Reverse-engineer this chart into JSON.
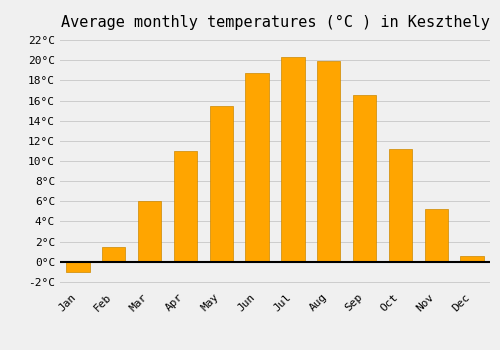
{
  "title": "Average monthly temperatures (°C ) in Keszthely",
  "months": [
    "Jan",
    "Feb",
    "Mar",
    "Apr",
    "May",
    "Jun",
    "Jul",
    "Aug",
    "Sep",
    "Oct",
    "Nov",
    "Dec"
  ],
  "values": [
    -1.0,
    1.5,
    6.0,
    11.0,
    15.5,
    18.7,
    20.3,
    19.9,
    16.5,
    11.2,
    5.2,
    0.6
  ],
  "bar_color": "#FFA500",
  "bar_edge_color": "#CC8800",
  "background_color": "#f0f0f0",
  "grid_color": "#cccccc",
  "ylim": [
    -2.5,
    22.5
  ],
  "yticks": [
    -2,
    0,
    2,
    4,
    6,
    8,
    10,
    12,
    14,
    16,
    18,
    20,
    22
  ],
  "title_fontsize": 11,
  "tick_fontsize": 8,
  "font_family": "monospace"
}
